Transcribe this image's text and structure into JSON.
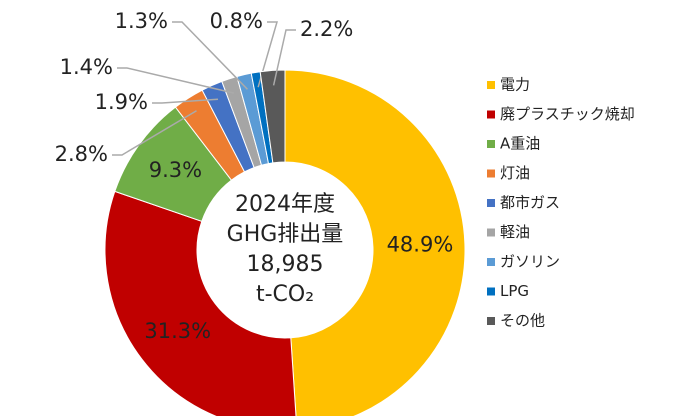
{
  "chart_data": {
    "type": "donut",
    "center_text": [
      "2024年度",
      "GHG排出量",
      "18,985",
      "t-CO₂"
    ],
    "categories": [
      "電力",
      "廃プラスチック焼却",
      "A重油",
      "灯油",
      "都市ガス",
      "軽油",
      "ガソリン",
      "LPG",
      "その他"
    ],
    "values": [
      48.9,
      31.3,
      9.3,
      2.8,
      1.9,
      1.4,
      1.3,
      0.8,
      2.2
    ],
    "value_labels": [
      "48.9%",
      "31.3%",
      "9.3%",
      "2.8%",
      "1.9%",
      "1.4%",
      "1.3%",
      "0.8%",
      "2.2%"
    ],
    "colors": [
      "#FFC000",
      "#C00000",
      "#70AD47",
      "#ED7D31",
      "#4472C4",
      "#A5A5A5",
      "#5B9BD5",
      "#0070C0",
      "#595959"
    ],
    "legend": "right"
  }
}
